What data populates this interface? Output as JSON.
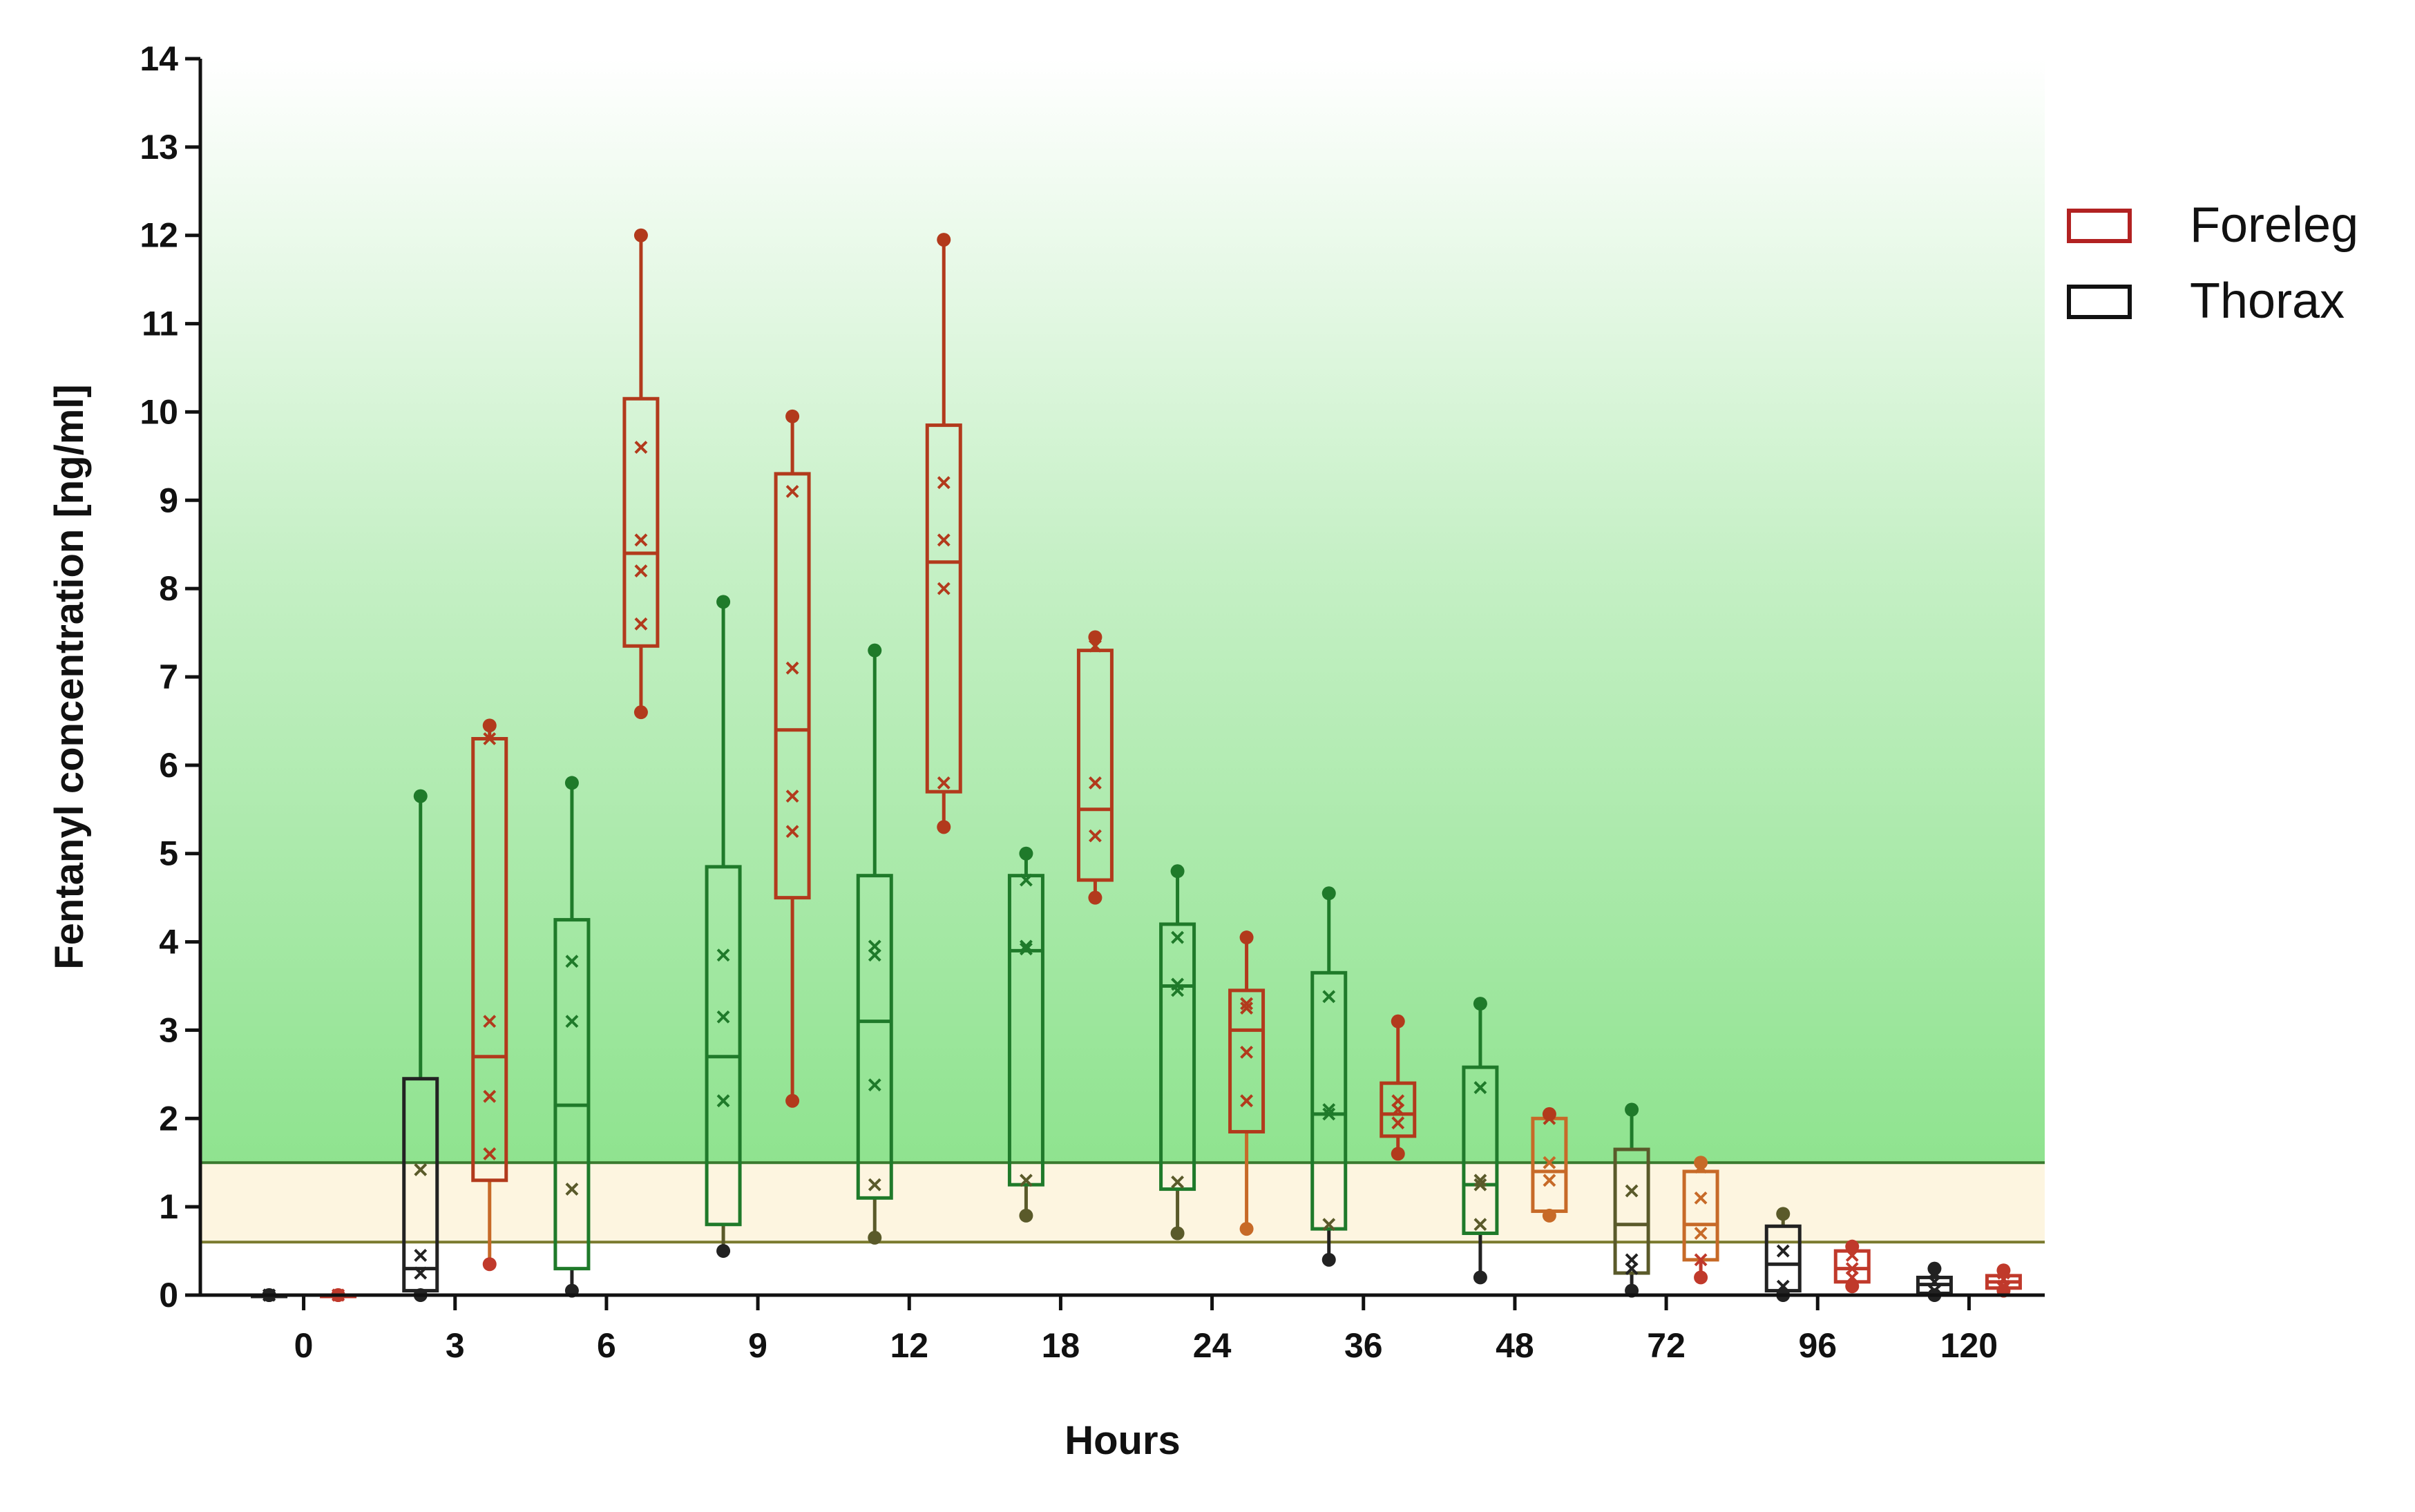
{
  "chart_data": {
    "type": "box",
    "title": "",
    "xlabel": "Hours",
    "ylabel": "Fentanyl concentration [ng/ml]",
    "ylim": [
      0,
      14
    ],
    "yticks": [
      0,
      1,
      2,
      3,
      4,
      5,
      6,
      7,
      8,
      9,
      10,
      11,
      12,
      13,
      14
    ],
    "categories": [
      "0",
      "3",
      "6",
      "9",
      "12",
      "18",
      "24",
      "36",
      "48",
      "72",
      "96",
      "120"
    ],
    "legend_position": "right",
    "bands": [
      {
        "from": 0.6,
        "to": 1.5,
        "color": "#fdf5e0",
        "line": "#7a7a2e"
      },
      {
        "from": 1.5,
        "to": 14,
        "color_bottom": "#8fe38f",
        "color_top": "#ffffff",
        "line": "#3a7a2e"
      }
    ],
    "series": [
      {
        "name": "Thorax",
        "legend_color": "#111111",
        "boxes": [
          {
            "min": 0,
            "q1": 0,
            "median": 0,
            "q3": 0,
            "max": 0,
            "points": [
              0,
              0,
              0,
              0
            ]
          },
          {
            "min": 0,
            "q1": 0.05,
            "median": 0.3,
            "q3": 2.45,
            "max": 5.65,
            "points": [
              0.25,
              0.45,
              1.42
            ]
          },
          {
            "min": 0.05,
            "q1": 0.3,
            "median": 2.15,
            "q3": 4.25,
            "max": 5.8,
            "points": [
              1.2,
              3.1,
              3.78
            ]
          },
          {
            "min": 0.5,
            "q1": 0.8,
            "median": 2.7,
            "q3": 4.85,
            "max": 7.85,
            "points": [
              2.2,
              3.15,
              3.85
            ]
          },
          {
            "min": 0.65,
            "q1": 1.1,
            "median": 3.1,
            "q3": 4.75,
            "max": 7.3,
            "points": [
              1.25,
              2.38,
              3.85,
              3.95
            ]
          },
          {
            "min": 0.9,
            "q1": 1.25,
            "median": 3.9,
            "q3": 4.75,
            "max": 5.0,
            "points": [
              1.3,
              3.92,
              3.95,
              4.7
            ]
          },
          {
            "min": 0.7,
            "q1": 1.2,
            "median": 3.5,
            "q3": 4.2,
            "max": 4.8,
            "points": [
              1.28,
              3.45,
              3.52,
              4.05
            ]
          },
          {
            "min": 0.4,
            "q1": 0.75,
            "median": 2.05,
            "q3": 3.65,
            "max": 4.55,
            "points": [
              0.8,
              2.05,
              2.1,
              3.38
            ]
          },
          {
            "min": 0.2,
            "q1": 0.7,
            "median": 1.25,
            "q3": 2.58,
            "max": 3.3,
            "points": [
              0.8,
              1.25,
              1.3,
              2.35
            ]
          },
          {
            "min": 0.05,
            "q1": 0.25,
            "median": 0.8,
            "q3": 1.65,
            "max": 2.1,
            "points": [
              0.3,
              0.4,
              1.18
            ]
          },
          {
            "min": 0.0,
            "q1": 0.05,
            "median": 0.35,
            "q3": 0.78,
            "max": 0.92,
            "points": [
              0.1,
              0.5
            ]
          },
          {
            "min": 0.0,
            "q1": 0.02,
            "median": 0.12,
            "q3": 0.2,
            "max": 0.3,
            "points": [
              0.05,
              0.15,
              0.25
            ]
          }
        ]
      },
      {
        "name": "Foreleg",
        "legend_color": "#b22222",
        "boxes": [
          {
            "min": 0,
            "q1": 0,
            "median": 0,
            "q3": 0,
            "max": 0,
            "points": [
              0,
              0,
              0
            ]
          },
          {
            "min": 0.35,
            "q1": 1.3,
            "median": 2.7,
            "q3": 6.3,
            "max": 6.45,
            "points": [
              1.6,
              2.25,
              3.1,
              6.3
            ]
          },
          {
            "min": 6.6,
            "q1": 7.35,
            "median": 8.4,
            "q3": 10.15,
            "max": 12.0,
            "points": [
              7.6,
              8.2,
              8.55,
              9.6
            ]
          },
          {
            "min": 2.2,
            "q1": 4.5,
            "median": 6.4,
            "q3": 9.3,
            "max": 9.95,
            "points": [
              5.25,
              5.65,
              7.1,
              9.1
            ]
          },
          {
            "min": 5.3,
            "q1": 5.7,
            "median": 8.3,
            "q3": 9.85,
            "max": 11.95,
            "points": [
              5.8,
              8.0,
              8.55,
              9.2
            ]
          },
          {
            "min": 4.5,
            "q1": 4.7,
            "median": 5.5,
            "q3": 7.3,
            "max": 7.45,
            "points": [
              5.2,
              5.8,
              7.35
            ]
          },
          {
            "min": 0.75,
            "q1": 1.85,
            "median": 3.0,
            "q3": 3.45,
            "max": 4.05,
            "points": [
              2.2,
              2.75,
              3.25,
              3.3
            ]
          },
          {
            "min": 1.6,
            "q1": 1.8,
            "median": 2.05,
            "q3": 2.4,
            "max": 3.1,
            "points": [
              1.95,
              2.1,
              2.2
            ]
          },
          {
            "min": 0.9,
            "q1": 0.95,
            "median": 1.4,
            "q3": 2.0,
            "max": 2.05,
            "points": [
              1.3,
              1.5,
              2.0
            ]
          },
          {
            "min": 0.2,
            "q1": 0.4,
            "median": 0.8,
            "q3": 1.4,
            "max": 1.5,
            "points": [
              0.4,
              0.7,
              1.1,
              1.45
            ]
          },
          {
            "min": 0.1,
            "q1": 0.15,
            "median": 0.3,
            "q3": 0.5,
            "max": 0.55,
            "points": [
              0.2,
              0.3,
              0.45
            ]
          },
          {
            "min": 0.05,
            "q1": 0.08,
            "median": 0.15,
            "q3": 0.22,
            "max": 0.28,
            "points": [
              0.1,
              0.18,
              0.25
            ]
          }
        ]
      }
    ]
  }
}
